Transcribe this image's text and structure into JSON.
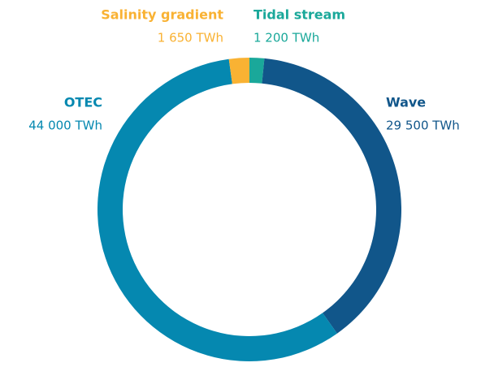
{
  "chart_data": {
    "type": "donut",
    "categories": [
      "Tidal stream",
      "Wave",
      "OTEC",
      "Salinity gradient"
    ],
    "values": [
      1200,
      29500,
      44000,
      1650
    ],
    "value_labels": [
      "1 200 TWh",
      "29 500 TWh",
      "44 000 TWh",
      "1 650 TWh"
    ],
    "colors": [
      "#1aa89a",
      "#11568a",
      "#0588b0",
      "#f9b233"
    ]
  }
}
